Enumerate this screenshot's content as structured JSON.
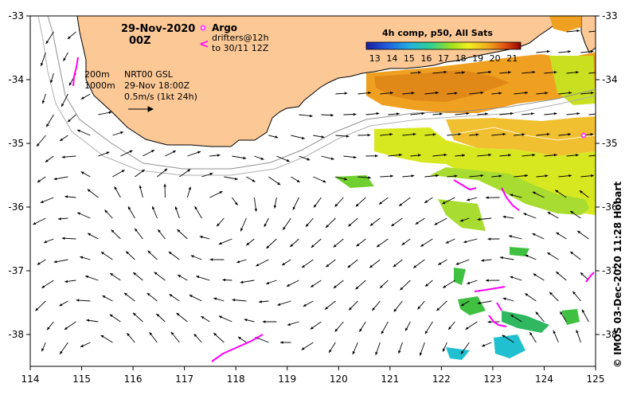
{
  "map": {
    "title_date": "29-Nov-2020",
    "title_time": "00Z",
    "argo_label": "Argo",
    "drifters_label_1": "drifters@12h",
    "drifters_label_2": "to 30/11 12Z",
    "isobath_200": "200m",
    "isobath_1000": "1000m",
    "gsl_product": "NRT00 GSL",
    "gsl_time": "29-Nov 18:00Z",
    "vector_scale": "0.5m/s (1kt 24h)",
    "credit": "© IMOS 03-Dec-2020 11:28 Hobart",
    "colorbar": {
      "title": "4h comp, p50, All Sats",
      "ticks": [
        "13",
        "14",
        "15",
        "16",
        "17",
        "18",
        "19",
        "20",
        "21"
      ],
      "range": [
        12.5,
        21.5
      ]
    },
    "axes": {
      "lon": [
        "114",
        "115",
        "116",
        "117",
        "118",
        "119",
        "120",
        "121",
        "122",
        "123",
        "124",
        "125"
      ],
      "lat": [
        "-33",
        "-34",
        "-35",
        "-36",
        "-37",
        "-38"
      ],
      "lon_range": [
        114,
        125
      ],
      "lat_range": [
        -33,
        -38.5
      ]
    },
    "colors": {
      "land": "#fbc896",
      "magenta": "#ff00ff",
      "sst_orange": "#f0a020",
      "sst_yellow": "#d8e820",
      "sst_green": "#40c040",
      "sst_cyan": "#20c0d0"
    }
  }
}
